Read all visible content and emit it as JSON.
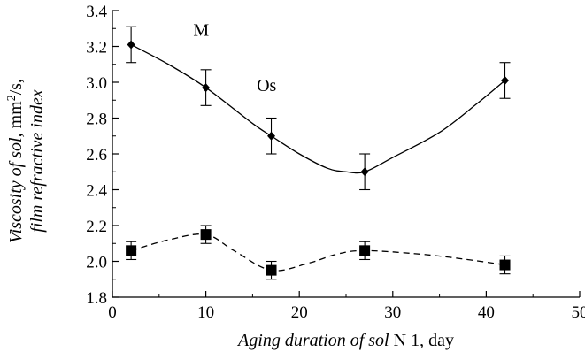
{
  "chart_data": {
    "type": "line",
    "xlabel_italic": "Aging duration of sol",
    "xlabel_plain": " N 1, day",
    "ylabel_line1_italic": "Viscosity of sol,",
    "ylabel_line1_unit": " mm",
    "ylabel_line1_sup": "2",
    "ylabel_line1_tail": "/s,",
    "ylabel_line2_italic": "film refractive index",
    "xlim": [
      0,
      50
    ],
    "ylim": [
      1.8,
      3.4
    ],
    "xticks": [
      0,
      10,
      20,
      30,
      40,
      50
    ],
    "yticks": [
      1.8,
      2.0,
      2.2,
      2.4,
      2.6,
      2.8,
      3.0,
      3.2,
      3.4
    ],
    "series": [
      {
        "marker": "diamond",
        "line_style": "solid",
        "x": [
          2,
          10,
          17,
          27,
          42
        ],
        "y": [
          3.21,
          2.97,
          2.7,
          2.5,
          3.01
        ],
        "err": [
          0.1,
          0.1,
          0.1,
          0.1,
          0.1
        ],
        "curve": [
          [
            2,
            3.21
          ],
          [
            6,
            3.1
          ],
          [
            10,
            2.97
          ],
          [
            15,
            2.77
          ],
          [
            17,
            2.7
          ],
          [
            20,
            2.6
          ],
          [
            23,
            2.52
          ],
          [
            25,
            2.5
          ],
          [
            27,
            2.5
          ],
          [
            30,
            2.58
          ],
          [
            35,
            2.72
          ],
          [
            39,
            2.88
          ],
          [
            42,
            3.01
          ]
        ]
      },
      {
        "marker": "square",
        "line_style": "dashed",
        "x": [
          2,
          10,
          17,
          27,
          42
        ],
        "y": [
          2.06,
          2.15,
          1.95,
          2.06,
          1.98
        ],
        "err": [
          0.05,
          0.05,
          0.05,
          0.05,
          0.05
        ],
        "curve": [
          [
            2,
            2.06
          ],
          [
            6,
            2.12
          ],
          [
            10,
            2.15
          ],
          [
            13,
            2.06
          ],
          [
            17,
            1.95
          ],
          [
            21,
            1.99
          ],
          [
            24,
            2.04
          ],
          [
            27,
            2.06
          ],
          [
            33,
            2.04
          ],
          [
            38,
            2.01
          ],
          [
            42,
            1.98
          ]
        ]
      }
    ],
    "annotations": [
      {
        "text": "M",
        "x": 9.5,
        "y": 3.26
      },
      {
        "text": "Os",
        "x": 16.5,
        "y": 2.95
      }
    ]
  }
}
